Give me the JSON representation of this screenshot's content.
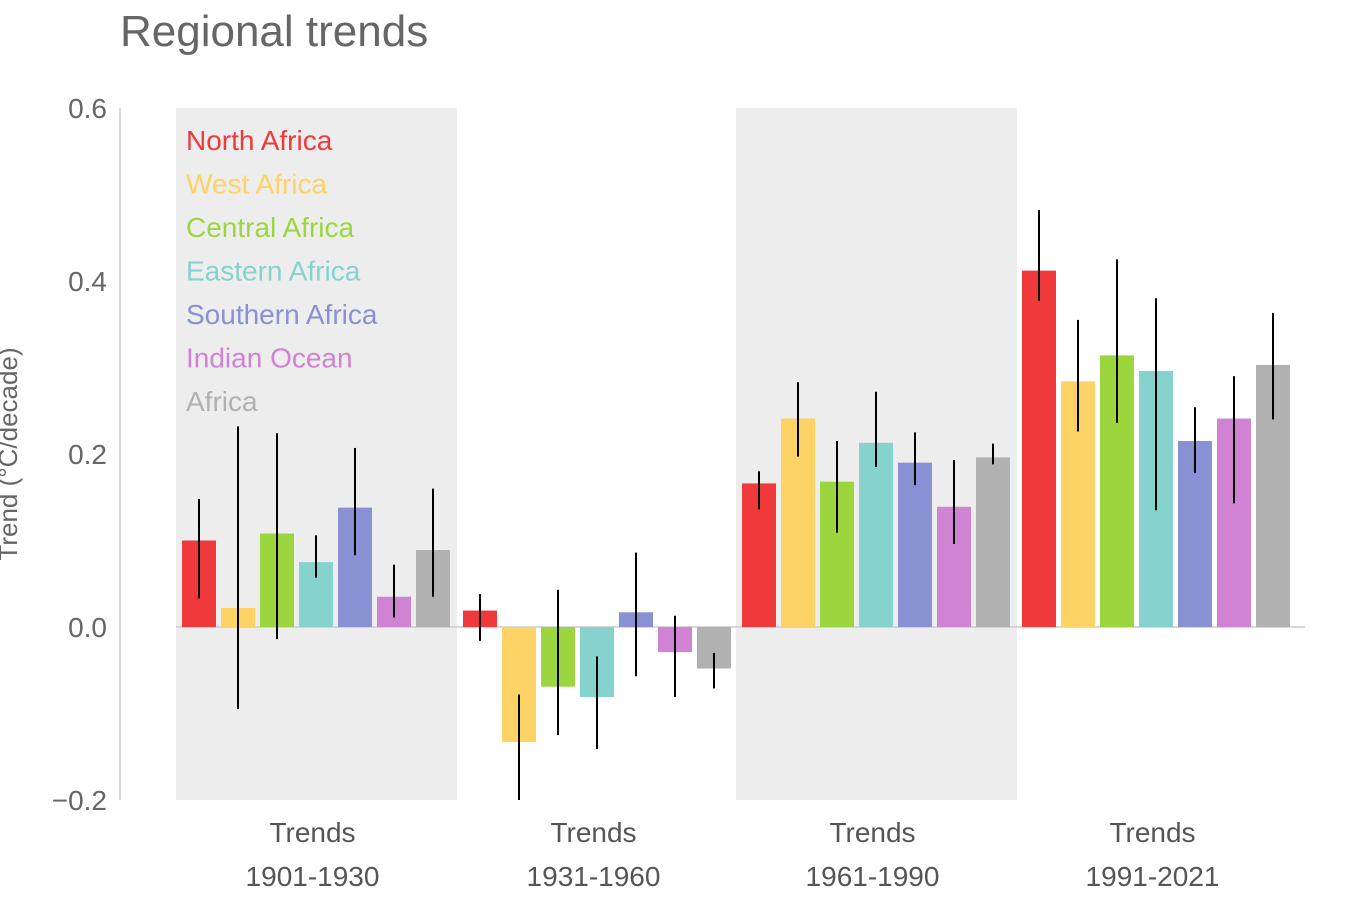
{
  "chart_data": {
    "type": "bar",
    "title": "Regional trends",
    "ylabel": "Trend (°C/decade)",
    "ylim": [
      -0.2,
      0.6
    ],
    "yticks": [
      -0.2,
      0.0,
      0.2,
      0.4,
      0.6
    ],
    "ytick_labels": [
      "−0.2",
      "0.0",
      "0.2",
      "0.4",
      "0.6"
    ],
    "legend_placement": "top-left",
    "groups": [
      {
        "label_line1": "Trends",
        "label_line2": "1901-1930",
        "shaded": true
      },
      {
        "label_line1": "Trends",
        "label_line2": "1931-1960",
        "shaded": false
      },
      {
        "label_line1": "Trends",
        "label_line2": "1961-1990",
        "shaded": true
      },
      {
        "label_line1": "Trends",
        "label_line2": "1991-2021",
        "shaded": false
      }
    ],
    "series": [
      {
        "name": "North Africa",
        "color": "#f0393b",
        "values": [
          0.1,
          0.019,
          0.166,
          0.412
        ],
        "err_low": [
          0.033,
          -0.016,
          0.136,
          0.377
        ],
        "err_high": [
          0.148,
          0.038,
          0.18,
          0.482
        ]
      },
      {
        "name": "West Africa",
        "color": "#fdd366",
        "values": [
          0.022,
          -0.133,
          0.241,
          0.284
        ],
        "err_low": [
          -0.095,
          -0.2,
          0.197,
          0.226
        ],
        "err_high": [
          0.232,
          -0.078,
          0.283,
          0.355
        ]
      },
      {
        "name": "Central Africa",
        "color": "#9cd63f",
        "values": [
          0.108,
          -0.069,
          0.168,
          0.314
        ],
        "err_low": [
          -0.014,
          -0.125,
          0.109,
          0.236
        ],
        "err_high": [
          0.224,
          0.043,
          0.215,
          0.425
        ]
      },
      {
        "name": "Eastern Africa",
        "color": "#86d2cd",
        "values": [
          0.075,
          -0.081,
          0.213,
          0.296
        ],
        "err_low": [
          0.057,
          -0.141,
          0.185,
          0.135
        ],
        "err_high": [
          0.106,
          -0.034,
          0.272,
          0.38
        ]
      },
      {
        "name": "Southern Africa",
        "color": "#8891d4",
        "values": [
          0.138,
          0.017,
          0.19,
          0.215
        ],
        "err_low": [
          0.083,
          -0.057,
          0.164,
          0.178
        ],
        "err_high": [
          0.207,
          0.086,
          0.225,
          0.254
        ]
      },
      {
        "name": "Indian Ocean",
        "color": "#d083d2",
        "values": [
          0.035,
          -0.029,
          0.139,
          0.241
        ],
        "err_low": [
          0.011,
          -0.081,
          0.096,
          0.143
        ],
        "err_high": [
          0.072,
          0.013,
          0.193,
          0.29
        ]
      },
      {
        "name": "Africa",
        "color": "#b1b1b1",
        "values": [
          0.089,
          -0.048,
          0.196,
          0.303
        ],
        "err_low": [
          0.035,
          -0.071,
          0.188,
          0.24
        ],
        "err_high": [
          0.16,
          -0.03,
          0.212,
          0.363
        ]
      }
    ]
  }
}
